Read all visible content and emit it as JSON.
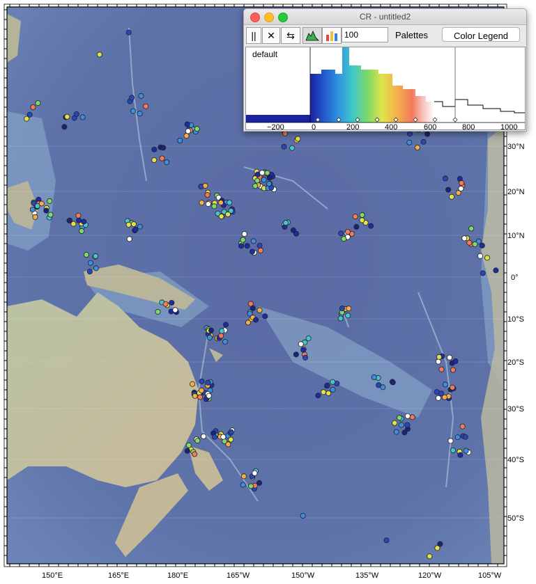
{
  "window": {
    "title": "CR - untitled2"
  },
  "toolbar": {
    "pause_glyph": "||",
    "close_glyph": "✕",
    "link_glyph": "⇆",
    "count_value": "100",
    "palettes_label": "Palettes",
    "legend_button_label": "Color Legend"
  },
  "histogram": {
    "palette_name": "default",
    "axis_ticks": [
      "−200",
      "0",
      "200",
      "400",
      "600",
      "800",
      "1000"
    ],
    "colors": {
      "low": "#1f2aa8",
      "mid": "#7cd65b",
      "high": "#f6b15a",
      "top": "#ffffff"
    }
  },
  "map": {
    "lat_labels": [
      "30°N",
      "20°N",
      "10°N",
      "0°",
      "10°S",
      "20°S",
      "30°S",
      "40°S",
      "50°S"
    ],
    "lon_labels": [
      "150°E",
      "165°E",
      "180°E",
      "165°W",
      "150°W",
      "135°W",
      "120°W",
      "105°W"
    ],
    "colors": {
      "ocean": "#5b6fa6",
      "ocean_shallow": "#7e9bc4",
      "land": "#b9b39a",
      "continent": "#c7c1a1"
    }
  }
}
